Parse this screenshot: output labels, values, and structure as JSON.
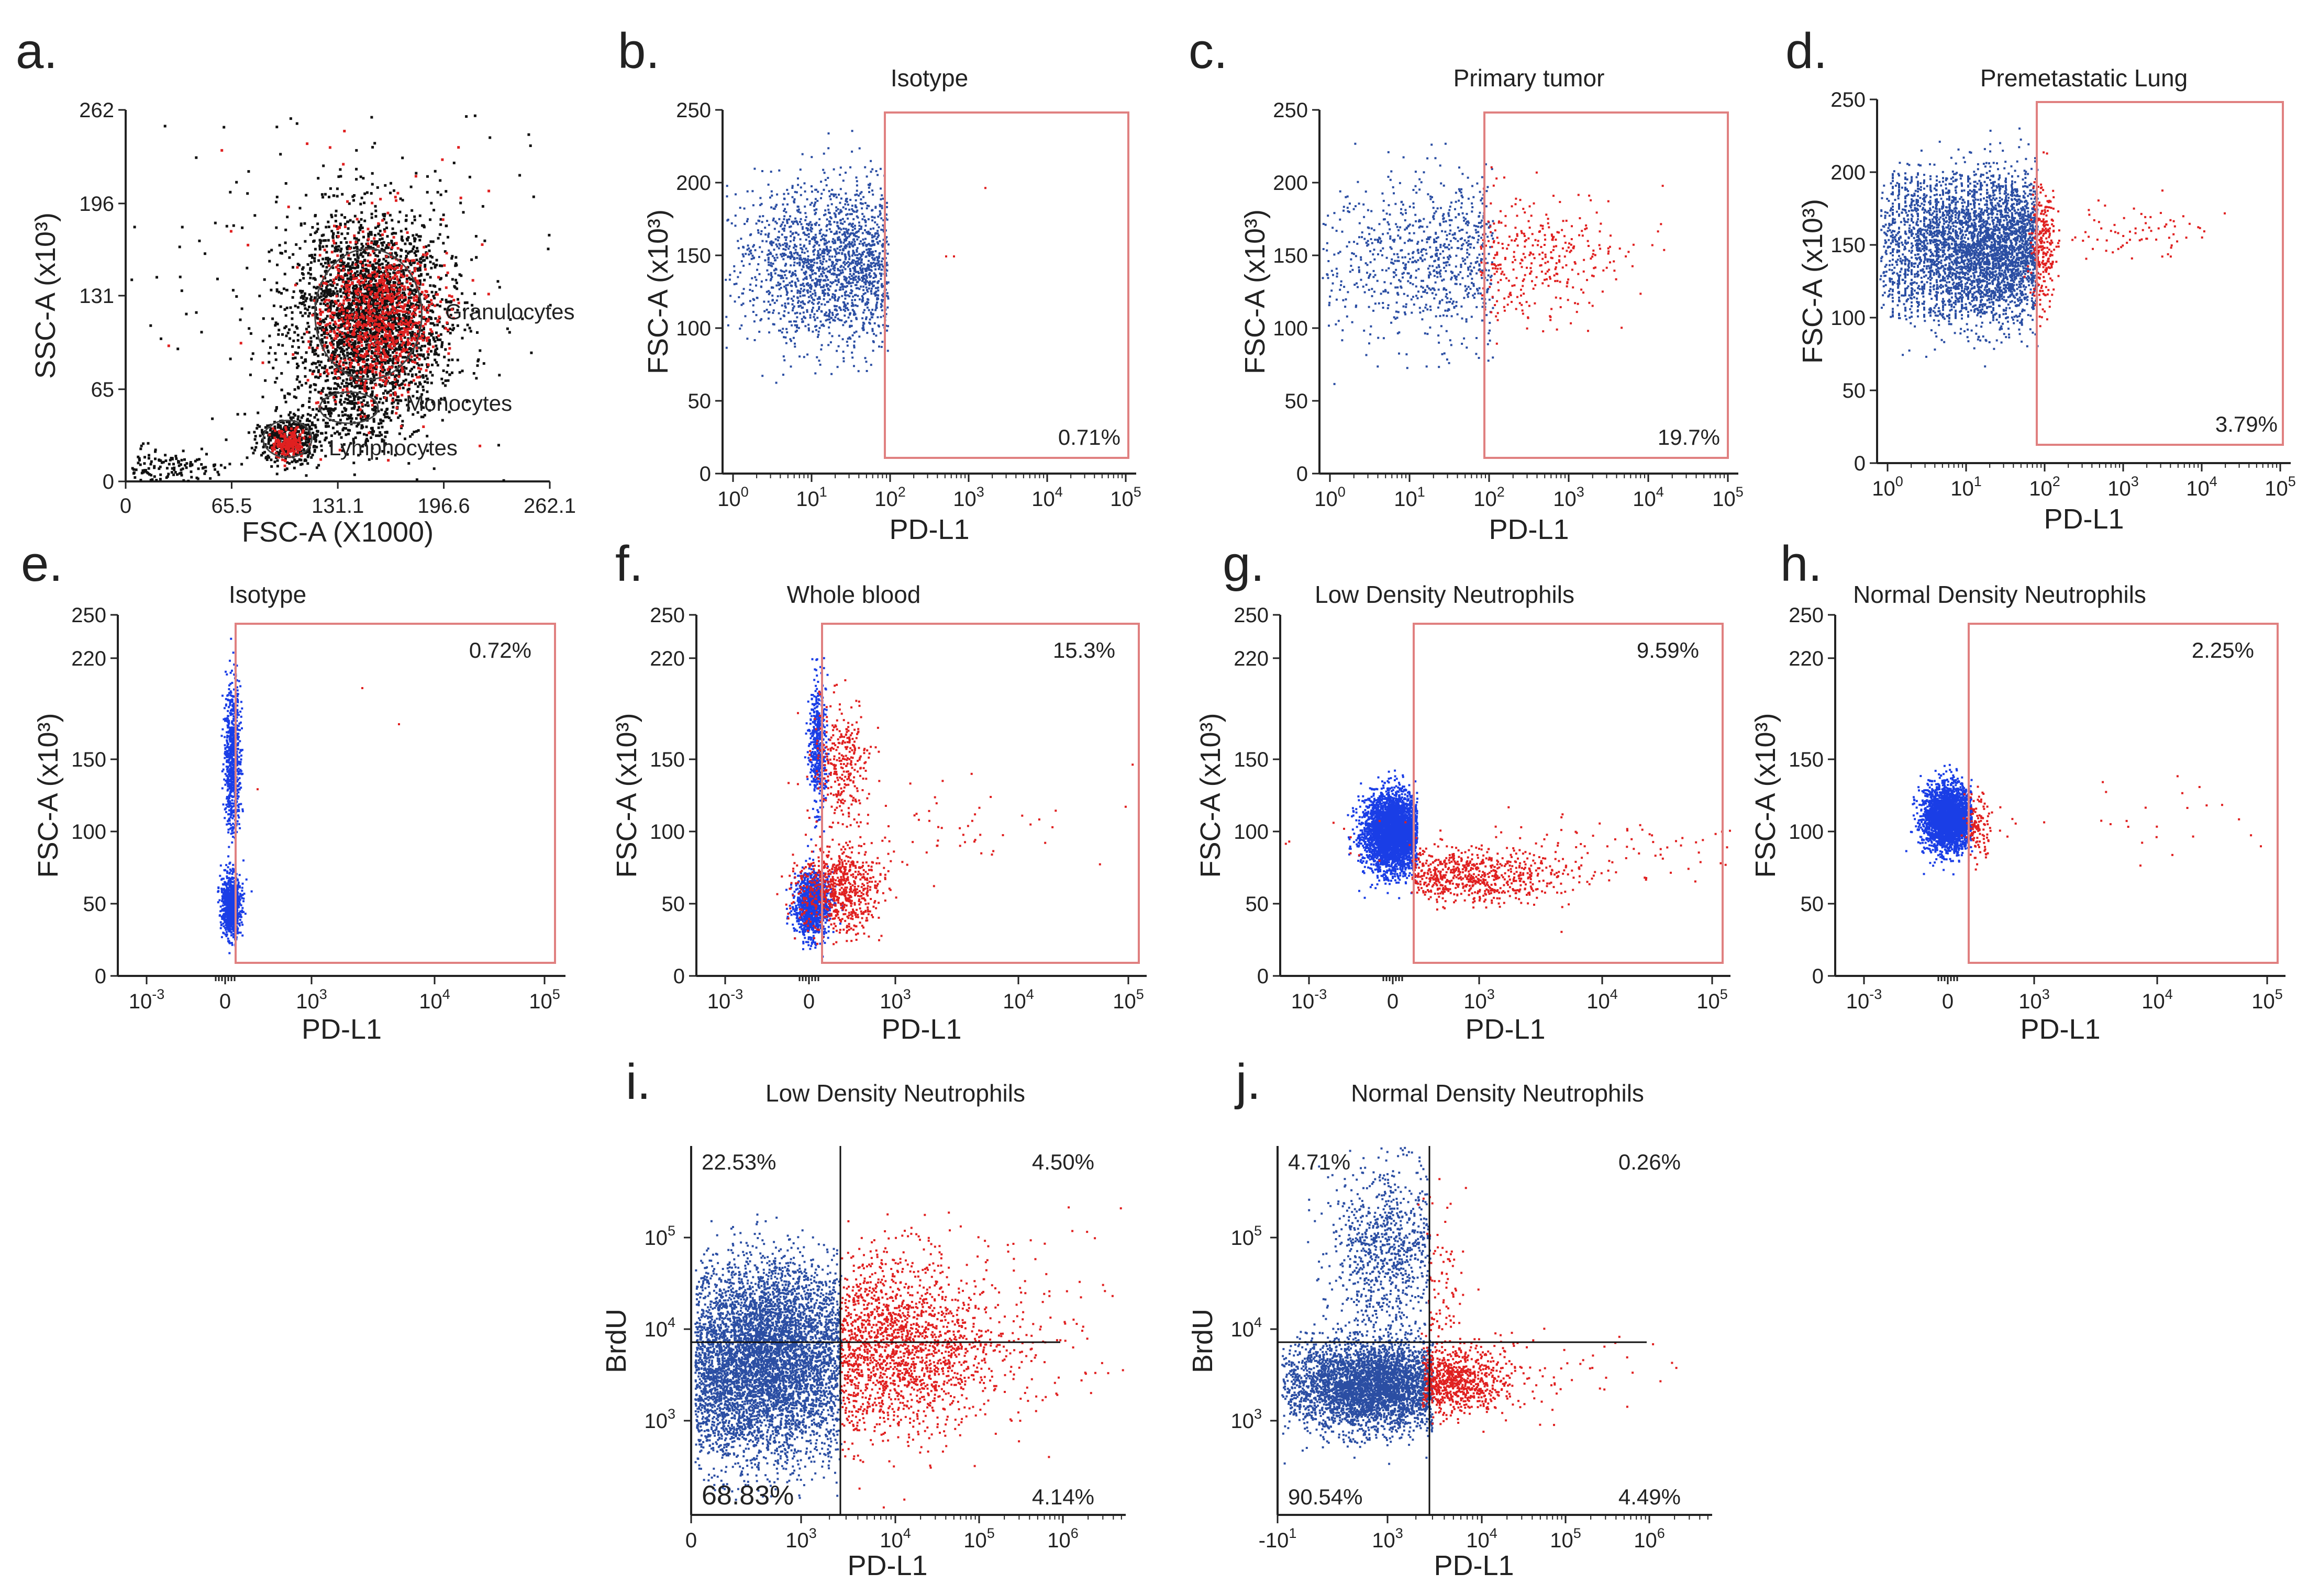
{
  "colors": {
    "blue": "#2b4ea3",
    "bright_blue": "#1a3ee6",
    "red": "#e02020",
    "black": "#111111",
    "gate": "#e08080",
    "axis": "#222222"
  },
  "chart_data": [
    {
      "id": "a",
      "type": "scatter",
      "letter": "a.",
      "title": "",
      "xlabel": "FSC-A (X1000)",
      "ylabel": "SSC-A (x10³)",
      "xscale": "linear",
      "yscale": "linear",
      "xlim": [
        0,
        262.1
      ],
      "ylim": [
        0,
        262
      ],
      "xticks": [
        "0",
        "65.5",
        "131.1",
        "196.6",
        "262.1"
      ],
      "yticks": [
        "0",
        "65",
        "131",
        "196",
        "262"
      ],
      "gates": [
        {
          "name": "Granulocytes",
          "center": [
            150,
            118
          ],
          "radius": [
            33,
            46
          ],
          "label": "Granulocytes"
        },
        {
          "name": "Monocytes",
          "center": [
            138,
            52
          ],
          "radius": [
            18,
            11
          ],
          "label": "Monocytes"
        },
        {
          "name": "Lymphocytes",
          "center": [
            100,
            30
          ],
          "radius": [
            15,
            13
          ],
          "label": "Lymphocytes"
        }
      ],
      "series": [
        {
          "name": "events",
          "color": "black"
        },
        {
          "name": "PD-L1+",
          "color": "red"
        }
      ]
    },
    {
      "id": "b",
      "type": "scatter",
      "letter": "b.",
      "title": "Isotype",
      "xlabel": "PD-L1",
      "ylabel": "FSC-A (x10³)",
      "xscale": "log",
      "xlim": [
        0,
        5
      ],
      "xtick_exponents": [
        "0",
        "1",
        "2",
        "3",
        "4",
        "5"
      ],
      "ylim": [
        0,
        250
      ],
      "yticks": [
        0,
        50,
        100,
        150,
        200,
        250
      ],
      "gate": {
        "x": [
          2.1,
          5.2
        ],
        "y": [
          10,
          250
        ]
      },
      "gate_percent": "0.71%"
    },
    {
      "id": "c",
      "type": "scatter",
      "letter": "c.",
      "title": "Primary tumor",
      "xlabel": "PD-L1",
      "ylabel": "FSC-A (x10³)",
      "xscale": "log",
      "xlim": [
        0,
        5
      ],
      "xtick_exponents": [
        "0",
        "1",
        "2",
        "3",
        "4",
        "5"
      ],
      "ylim": [
        0,
        250
      ],
      "yticks": [
        0,
        50,
        100,
        150,
        200,
        250
      ],
      "gate": {
        "x": [
          2.1,
          5.2
        ],
        "y": [
          10,
          250
        ]
      },
      "gate_percent": "19.7%"
    },
    {
      "id": "d",
      "type": "scatter",
      "letter": "d.",
      "title": "Premetastatic Lung",
      "xlabel": "PD-L1",
      "ylabel": "FSC-A (x10³)",
      "xscale": "log",
      "xlim": [
        0,
        5
      ],
      "xtick_exponents": [
        "0",
        "1",
        "2",
        "3",
        "4",
        "5"
      ],
      "ylim": [
        0,
        250
      ],
      "yticks": [
        0,
        50,
        100,
        150,
        200,
        250
      ],
      "gate": {
        "x": [
          2.2,
          5.2
        ],
        "y": [
          10,
          250
        ]
      },
      "gate_percent": "3.79%"
    },
    {
      "id": "e",
      "type": "scatter",
      "letter": "e.",
      "title": "Isotype",
      "xlabel": "PD-L1",
      "ylabel": "FSC-A (x10³)",
      "xscale": "biexponential",
      "xtick_labels": [
        {
          "base": "10",
          "exp": "-3"
        },
        {
          "base": "0",
          "exp": ""
        },
        {
          "base": "10",
          "exp": "3"
        },
        {
          "base": "10",
          "exp": "4"
        },
        {
          "base": "10",
          "exp": "5"
        }
      ],
      "ylim": [
        0,
        250
      ],
      "yticks": [
        0,
        50,
        100,
        150,
        220,
        250
      ],
      "gate_percent": "0.72%"
    },
    {
      "id": "f",
      "type": "scatter",
      "letter": "f.",
      "title": "Whole blood",
      "xlabel": "PD-L1",
      "ylabel": "FSC-A (x10³)",
      "xscale": "biexponential",
      "xtick_labels": [
        {
          "base": "10",
          "exp": "-3"
        },
        {
          "base": "0",
          "exp": ""
        },
        {
          "base": "10",
          "exp": "3"
        },
        {
          "base": "10",
          "exp": "4"
        },
        {
          "base": "10",
          "exp": "5"
        }
      ],
      "ylim": [
        0,
        250
      ],
      "yticks": [
        0,
        50,
        100,
        150,
        220,
        250
      ],
      "gate_percent": "15.3%"
    },
    {
      "id": "g",
      "type": "scatter",
      "letter": "g.",
      "title": "Low Density Neutrophils",
      "xlabel": "PD-L1",
      "ylabel": "FSC-A (x10³)",
      "xscale": "biexponential",
      "xtick_labels": [
        {
          "base": "10",
          "exp": "-3"
        },
        {
          "base": "0",
          "exp": ""
        },
        {
          "base": "10",
          "exp": "3"
        },
        {
          "base": "10",
          "exp": "4"
        },
        {
          "base": "10",
          "exp": "5"
        }
      ],
      "ylim": [
        0,
        250
      ],
      "yticks": [
        0,
        50,
        100,
        150,
        220,
        250
      ],
      "gate_percent": "9.59%"
    },
    {
      "id": "h",
      "type": "scatter",
      "letter": "h.",
      "title": "Normal Density Neutrophils",
      "xlabel": "PD-L1",
      "ylabel": "FSC-A (x10³)",
      "xscale": "biexponential",
      "xtick_labels": [
        {
          "base": "10",
          "exp": "-3"
        },
        {
          "base": "0",
          "exp": ""
        },
        {
          "base": "10",
          "exp": "3"
        },
        {
          "base": "10",
          "exp": "4"
        },
        {
          "base": "10",
          "exp": "5"
        }
      ],
      "ylim": [
        0,
        250
      ],
      "yticks": [
        0,
        50,
        100,
        150,
        220,
        250
      ],
      "gate_percent": "2.25%"
    },
    {
      "id": "i",
      "type": "scatter",
      "letter": "i.",
      "title": "Low Density Neutrophils",
      "xlabel": "PD-L1",
      "ylabel": "BrdU",
      "xscale": "log",
      "yscale": "log",
      "xtick_labels": [
        {
          "base": "0",
          "exp": ""
        },
        {
          "base": "10",
          "exp": "3"
        },
        {
          "base": "10",
          "exp": "4"
        },
        {
          "base": "10",
          "exp": "5"
        },
        {
          "base": "10",
          "exp": "6"
        }
      ],
      "ytick_labels": [
        {
          "base": "10",
          "exp": "3"
        },
        {
          "base": "10",
          "exp": "4"
        },
        {
          "base": "10",
          "exp": "5"
        }
      ],
      "quadrants": {
        "top_left": "22.53%",
        "top_right": "4.50%",
        "bottom_left": "68.83%",
        "bottom_right": "4.14%"
      }
    },
    {
      "id": "j",
      "type": "scatter",
      "letter": "j.",
      "title": "Normal Density Neutrophils",
      "xlabel": "PD-L1",
      "ylabel": "BrdU",
      "xscale": "log",
      "yscale": "log",
      "xtick_labels": [
        {
          "base": "-10",
          "exp": "1"
        },
        {
          "base": "10",
          "exp": "3"
        },
        {
          "base": "10",
          "exp": "4"
        },
        {
          "base": "10",
          "exp": "5"
        },
        {
          "base": "10",
          "exp": "6"
        }
      ],
      "ytick_labels": [
        {
          "base": "10",
          "exp": "3"
        },
        {
          "base": "10",
          "exp": "4"
        },
        {
          "base": "10",
          "exp": "5"
        }
      ],
      "quadrants": {
        "top_left": "4.71%",
        "top_right": "0.26%",
        "bottom_left": "90.54%",
        "bottom_right": "4.49%"
      }
    }
  ]
}
